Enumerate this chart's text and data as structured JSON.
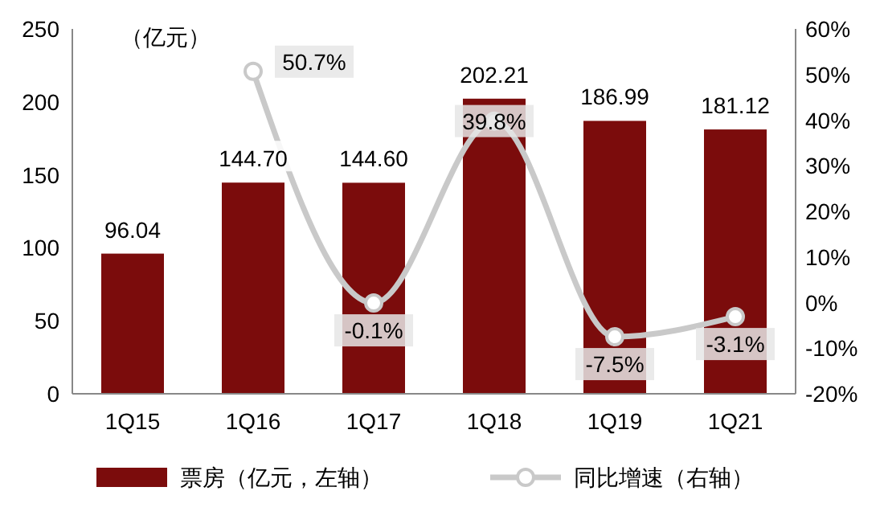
{
  "chart_data": {
    "type": "bar",
    "categories": [
      "1Q15",
      "1Q16",
      "1Q17",
      "1Q18",
      "1Q19",
      "1Q21"
    ],
    "series": [
      {
        "name": "票房（亿元，左轴）",
        "color": "#7b0c0c",
        "values": [
          96.04,
          144.7,
          144.6,
          202.21,
          186.99,
          181.12
        ],
        "value_labels": [
          "96.04",
          "144.70",
          "144.60",
          "202.21",
          "186.99",
          "181.12"
        ]
      },
      {
        "name": "同比增速（右轴）",
        "type": "line",
        "axis": "y2",
        "color": "#c9c9c9",
        "values": [
          null,
          50.7,
          -0.1,
          39.8,
          -7.5,
          -3.1
        ],
        "value_labels": [
          null,
          "50.7%",
          "-0.1%",
          "39.8%",
          "-7.5%",
          "-3.1%"
        ]
      }
    ],
    "ylim": [
      0,
      250
    ],
    "yticks": [
      0,
      50,
      100,
      150,
      200,
      250
    ],
    "y2lim": [
      -20,
      60
    ],
    "y2ticks": [
      {
        "value": -20,
        "label": "-20%"
      },
      {
        "value": -10,
        "label": "-10%"
      },
      {
        "value": 0,
        "label": "0%"
      },
      {
        "value": 10,
        "label": "10%"
      },
      {
        "value": 20,
        "label": "20%"
      },
      {
        "value": 30,
        "label": "30%"
      },
      {
        "value": 40,
        "label": "40%"
      },
      {
        "value": 50,
        "label": "50%"
      },
      {
        "value": 60,
        "label": "60%"
      }
    ],
    "annotations": [
      "（亿元）"
    ],
    "legend": "bottom",
    "marker": "circle",
    "grid": false
  }
}
